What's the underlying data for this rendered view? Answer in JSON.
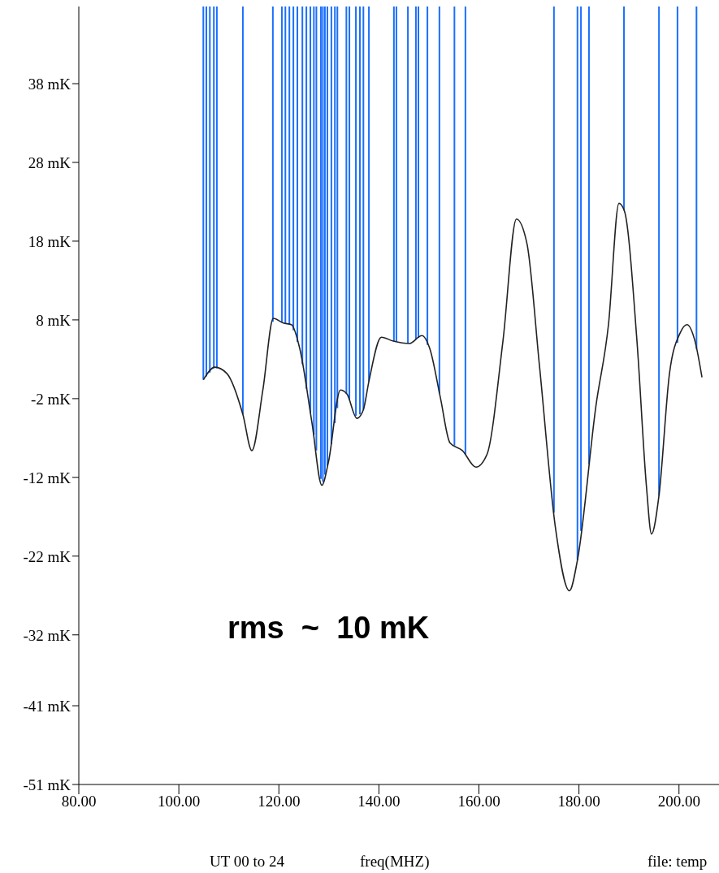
{
  "chart_data": {
    "type": "line",
    "xlabel": "freq(MHZ)",
    "annotations": [
      "rms  ~  10 mK",
      "UT 00 to 24",
      "file: temp"
    ],
    "xlim": [
      80,
      208
    ],
    "xticks": [
      {
        "value": 80,
        "label": "80.00"
      },
      {
        "value": 100,
        "label": "100.00"
      },
      {
        "value": 120,
        "label": "120.00"
      },
      {
        "value": 140,
        "label": "140.00"
      },
      {
        "value": 160,
        "label": "160.00"
      },
      {
        "value": 180,
        "label": "180.00"
      },
      {
        "value": 200,
        "label": "200.00"
      }
    ],
    "ylim": [
      -51,
      47.8
    ],
    "yticks": [
      {
        "value": -51,
        "label": "-51 mK"
      },
      {
        "value": -41,
        "label": "-41 mK"
      },
      {
        "value": -32,
        "label": "-32 mK"
      },
      {
        "value": -22,
        "label": "-22 mK"
      },
      {
        "value": -12,
        "label": "-12 mK"
      },
      {
        "value": -2,
        "label": "-2 mK"
      },
      {
        "value": 8,
        "label": "8 mK"
      },
      {
        "value": 18,
        "label": "18 mK"
      },
      {
        "value": 28,
        "label": "28 mK"
      },
      {
        "value": 38,
        "label": "38 mK"
      }
    ],
    "grid": false,
    "legend": false,
    "marker": "none",
    "line_style": "solid",
    "x": [
      104.9,
      107.2,
      109.6,
      112.8,
      114.6,
      116.8,
      118.9,
      120.9,
      122.5,
      124.2,
      126.6,
      128.6,
      129.9,
      132.3,
      133.6,
      135.6,
      136.9,
      138.0,
      140.5,
      142.9,
      146.1,
      148.6,
      150.2,
      152.3,
      154.2,
      156.7,
      159.4,
      161.6,
      164.8,
      167.5,
      169.6,
      172.1,
      175.3,
      178.1,
      179.7,
      183.4,
      185.9,
      188.0,
      189.1,
      191.6,
      193.5,
      194.5,
      196.0,
      198.1,
      200.2,
      201.6,
      203.2,
      204.6
    ],
    "series": [
      {
        "color": "#222222",
        "values": [
          0.4,
          2.0,
          1.2,
          -4.0,
          -8.6,
          -0.9,
          8.2,
          7.6,
          7.4,
          4.3,
          -5.0,
          -13.0,
          -10.1,
          -0.9,
          -1.4,
          -4.5,
          -3.4,
          0.2,
          5.8,
          5.3,
          5.0,
          6.0,
          4.3,
          -1.9,
          -7.6,
          -8.6,
          -10.7,
          -9.1,
          5.3,
          20.8,
          17.7,
          2.2,
          -18.4,
          -26.4,
          -22.5,
          -2.9,
          7.4,
          22.8,
          21.8,
          5.3,
          -13.2,
          -19.2,
          -14.3,
          1.2,
          6.3,
          7.4,
          5.3,
          0.7
        ]
      }
    ],
    "ref_lines": [
      {
        "axis": "x",
        "value": 104.9,
        "color": "#1a6fff"
      },
      {
        "axis": "x",
        "value": 105.5,
        "color": "#1a6fff"
      },
      {
        "axis": "x",
        "value": 106.2,
        "color": "#1a6fff"
      },
      {
        "axis": "x",
        "value": 107.0,
        "color": "#1a6fff"
      },
      {
        "axis": "x",
        "value": 107.6,
        "color": "#1a6fff"
      },
      {
        "axis": "x",
        "value": 112.8,
        "color": "#1a6fff"
      },
      {
        "axis": "x",
        "value": 118.8,
        "color": "#1a6fff"
      },
      {
        "axis": "x",
        "value": 120.6,
        "color": "#1a6fff"
      },
      {
        "axis": "x",
        "value": 121.3,
        "color": "#1a6fff"
      },
      {
        "axis": "x",
        "value": 122.1,
        "color": "#1a6fff"
      },
      {
        "axis": "x",
        "value": 122.9,
        "color": "#1a6fff"
      },
      {
        "axis": "x",
        "value": 123.7,
        "color": "#1a6fff"
      },
      {
        "axis": "x",
        "value": 124.7,
        "color": "#1a6fff"
      },
      {
        "axis": "x",
        "value": 125.5,
        "color": "#1a6fff"
      },
      {
        "axis": "x",
        "value": 126.3,
        "color": "#1a6fff"
      },
      {
        "axis": "x",
        "value": 127.0,
        "color": "#1a6fff"
      },
      {
        "axis": "x",
        "value": 127.5,
        "color": "#1a6fff"
      },
      {
        "axis": "x",
        "value": 128.4,
        "color": "#1a6fff"
      },
      {
        "axis": "x",
        "value": 128.8,
        "color": "#1a6fff"
      },
      {
        "axis": "x",
        "value": 129.2,
        "color": "#1a6fff"
      },
      {
        "axis": "x",
        "value": 129.7,
        "color": "#1a6fff"
      },
      {
        "axis": "x",
        "value": 130.5,
        "color": "#1a6fff"
      },
      {
        "axis": "x",
        "value": 131.2,
        "color": "#1a6fff"
      },
      {
        "axis": "x",
        "value": 131.7,
        "color": "#1a6fff"
      },
      {
        "axis": "x",
        "value": 133.5,
        "color": "#1a6fff"
      },
      {
        "axis": "x",
        "value": 134.1,
        "color": "#1a6fff"
      },
      {
        "axis": "x",
        "value": 135.4,
        "color": "#1a6fff"
      },
      {
        "axis": "x",
        "value": 136.2,
        "color": "#1a6fff"
      },
      {
        "axis": "x",
        "value": 136.9,
        "color": "#1a6fff"
      },
      {
        "axis": "x",
        "value": 138.0,
        "color": "#1a6fff"
      },
      {
        "axis": "x",
        "value": 143.0,
        "color": "#1a6fff"
      },
      {
        "axis": "x",
        "value": 143.5,
        "color": "#1a6fff"
      },
      {
        "axis": "x",
        "value": 145.8,
        "color": "#1a6fff"
      },
      {
        "axis": "x",
        "value": 147.4,
        "color": "#1a6fff"
      },
      {
        "axis": "x",
        "value": 147.9,
        "color": "#1a6fff"
      },
      {
        "axis": "x",
        "value": 149.7,
        "color": "#1a6fff"
      },
      {
        "axis": "x",
        "value": 152.1,
        "color": "#1a6fff"
      },
      {
        "axis": "x",
        "value": 155.1,
        "color": "#1a6fff"
      },
      {
        "axis": "x",
        "value": 157.3,
        "color": "#1a6fff"
      },
      {
        "axis": "x",
        "value": 175.0,
        "color": "#1a6fff"
      },
      {
        "axis": "x",
        "value": 179.7,
        "color": "#1a6fff"
      },
      {
        "axis": "x",
        "value": 180.4,
        "color": "#1a6fff"
      },
      {
        "axis": "x",
        "value": 182.0,
        "color": "#1a6fff"
      },
      {
        "axis": "x",
        "value": 189.0,
        "color": "#1a6fff"
      },
      {
        "axis": "x",
        "value": 196.0,
        "color": "#1a6fff"
      },
      {
        "axis": "x",
        "value": 199.7,
        "color": "#1a6fff"
      },
      {
        "axis": "x",
        "value": 203.5,
        "color": "#1a6fff"
      }
    ]
  }
}
